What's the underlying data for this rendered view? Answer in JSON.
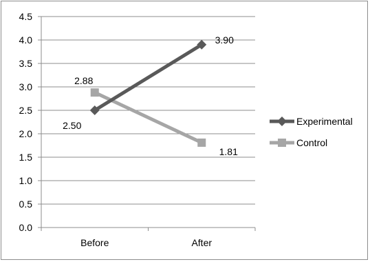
{
  "chart_data": {
    "type": "line",
    "title": "",
    "xlabel": "",
    "ylabel": "",
    "categories": [
      "Before",
      "After"
    ],
    "ylim": [
      0,
      4.5
    ],
    "yticks": [
      0.0,
      0.5,
      1.0,
      1.5,
      2.0,
      2.5,
      3.0,
      3.5,
      4.0,
      4.5
    ],
    "ytick_labels": [
      "0.0",
      "0.5",
      "1.0",
      "1.5",
      "2.0",
      "2.5",
      "3.0",
      "3.5",
      "4.0",
      "4.5"
    ],
    "grid": "horizontal",
    "legend": "right",
    "series": [
      {
        "name": "Experimental",
        "values": [
          2.5,
          3.9
        ],
        "labels": [
          "2.50",
          "3.90"
        ],
        "color": "#595959",
        "marker": "diamond"
      },
      {
        "name": "Control",
        "values": [
          2.88,
          1.81
        ],
        "labels": [
          "2.88",
          "1.81"
        ],
        "color": "#a6a6a6",
        "marker": "square"
      }
    ]
  }
}
